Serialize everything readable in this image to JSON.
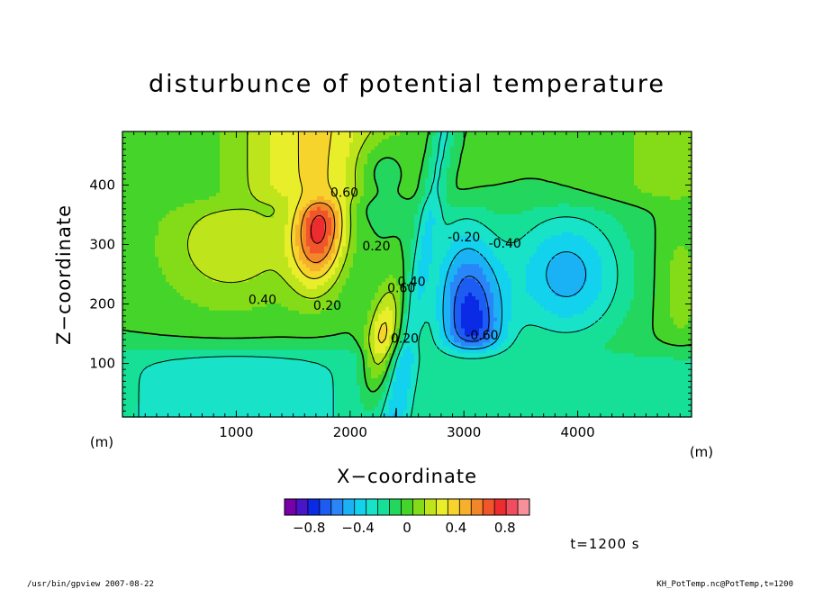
{
  "chart_data": {
    "type": "heatmap",
    "title": "disturbunce of potential temperature",
    "xlabel": "X−coordinate",
    "ylabel": "Z−coordinate",
    "x_unit": "(m)",
    "y_unit": "(m)",
    "xlim": [
      0,
      5000
    ],
    "ylim": [
      10,
      490
    ],
    "x_ticks": [
      1000,
      2000,
      3000,
      4000
    ],
    "x_tick_labels": [
      "1000",
      "2000",
      "3000",
      "4000"
    ],
    "y_ticks": [
      100,
      200,
      300,
      400
    ],
    "y_tick_labels": [
      "100",
      "200",
      "300",
      "400"
    ],
    "color_range": [
      -1.0,
      1.0
    ],
    "color_levels": [
      -1.0,
      -0.9,
      -0.8,
      -0.7,
      -0.6,
      -0.5,
      -0.4,
      -0.3,
      -0.2,
      -0.1,
      0.0,
      0.1,
      0.2,
      0.3,
      0.4,
      0.5,
      0.6,
      0.7,
      0.8,
      0.9,
      1.0
    ],
    "colorbar_tick_values": [
      -0.8,
      -0.4,
      0,
      0.4,
      0.8
    ],
    "colorbar_tick_labels": [
      "−0.8",
      "−0.4",
      "0",
      "0.4",
      "0.8"
    ],
    "contour_labels": [
      {
        "text": "0.60",
        "x": 1950,
        "z": 380
      },
      {
        "text": "0.40",
        "x": 1230,
        "z": 200
      },
      {
        "text": "0.20",
        "x": 1800,
        "z": 190
      },
      {
        "text": "0.20",
        "x": 2230,
        "z": 290
      },
      {
        "text": "0.60",
        "x": 2450,
        "z": 220
      },
      {
        "text": "0.40",
        "x": 2540,
        "z": 230
      },
      {
        "text": "0.20",
        "x": 2480,
        "z": 135
      },
      {
        "text": "-0.20",
        "x": 3000,
        "z": 305
      },
      {
        "text": "-0.40",
        "x": 3360,
        "z": 295
      },
      {
        "text": "-0.60",
        "x": 3160,
        "z": 140
      }
    ],
    "grid": false,
    "colorbar_position": "bottom"
  },
  "annotations": {
    "time": "t=1200 s",
    "footer_left": "/usr/bin/gpview   2007-08-22",
    "footer_right": "KH_PotTemp.nc@PotTemp,t=1200"
  },
  "colors": {
    "palette": [
      "#7700a8",
      "#4a14c8",
      "#0a2ae6",
      "#1c5cf2",
      "#2a86f8",
      "#1ab2f4",
      "#12d2ee",
      "#18e2c8",
      "#16e098",
      "#22d65e",
      "#44d42a",
      "#84dc18",
      "#bee41c",
      "#e8ee2a",
      "#f6d42c",
      "#f6b02a",
      "#f4862a",
      "#f0562a",
      "#ec2c2e",
      "#f04e5e",
      "#f8909a"
    ]
  }
}
